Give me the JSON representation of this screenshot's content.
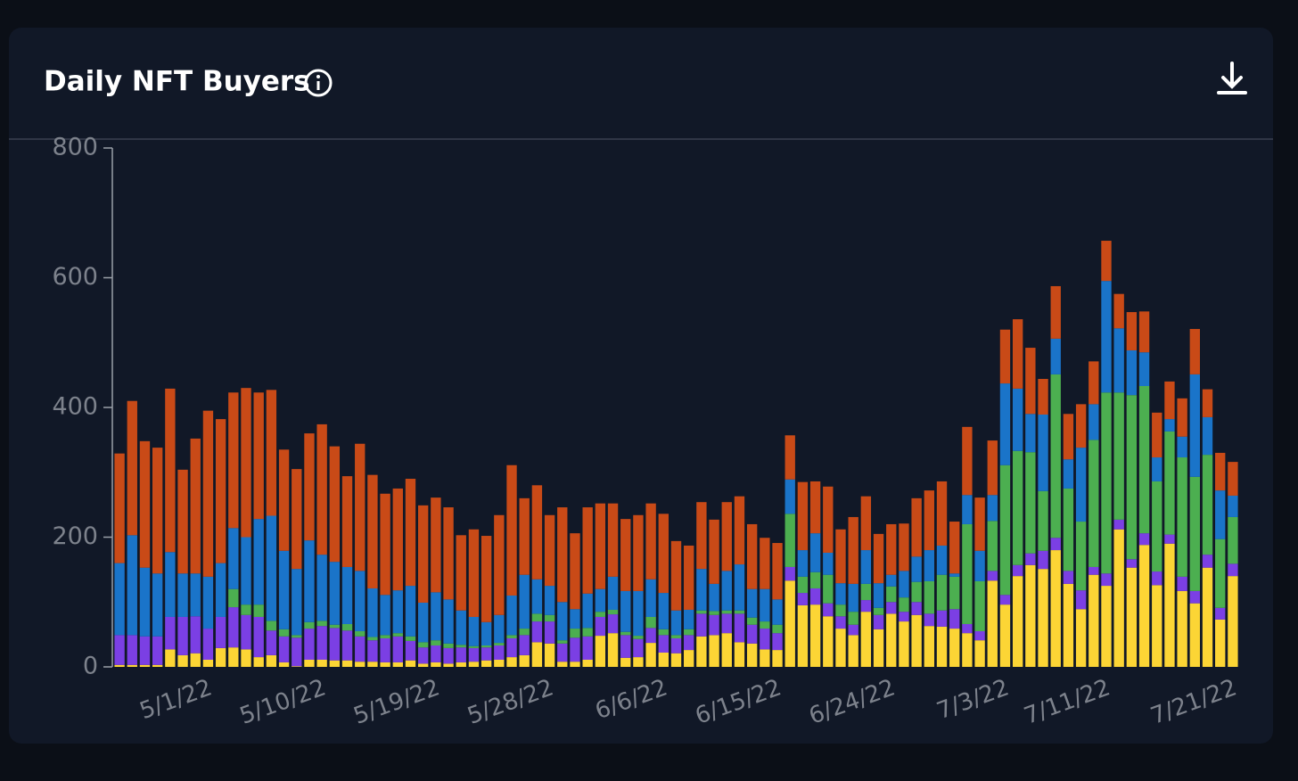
{
  "chart_data": {
    "type": "stacked-bar",
    "title": "Daily NFT Buyers",
    "categories": [
      null,
      null,
      null,
      null,
      null,
      null,
      null,
      "5/1/22",
      null,
      null,
      null,
      null,
      null,
      null,
      null,
      null,
      "5/10/22",
      null,
      null,
      null,
      null,
      null,
      null,
      null,
      null,
      "5/19/22",
      null,
      null,
      null,
      null,
      null,
      null,
      null,
      null,
      "5/28/22",
      null,
      null,
      null,
      null,
      null,
      null,
      null,
      null,
      "6/6/22",
      null,
      null,
      null,
      null,
      null,
      null,
      null,
      null,
      "6/15/22",
      null,
      null,
      null,
      null,
      null,
      null,
      null,
      null,
      "6/24/22",
      null,
      null,
      null,
      null,
      null,
      null,
      null,
      null,
      "7/3/22",
      null,
      null,
      null,
      null,
      null,
      null,
      null,
      "7/11/22",
      null,
      null,
      null,
      null,
      null,
      null,
      null,
      null,
      null,
      "7/21/22"
    ],
    "series": [
      {
        "color": "#fcd535",
        "values": [
          3,
          3,
          3,
          3,
          27,
          18,
          21,
          11,
          29,
          30,
          27,
          15,
          18,
          7,
          1,
          11,
          11,
          10,
          10,
          8,
          8,
          7,
          7,
          10,
          5,
          7,
          5,
          7,
          8,
          10,
          11,
          15,
          18,
          38,
          36,
          8,
          8,
          11,
          48,
          52,
          14,
          15,
          37,
          22,
          21,
          26,
          47,
          49,
          52,
          38,
          36,
          27,
          26,
          133,
          95,
          96,
          78,
          59,
          49,
          85,
          58,
          82,
          70,
          80,
          63,
          62,
          59,
          52,
          41,
          133,
          96,
          140,
          157,
          151,
          180,
          128,
          89,
          142,
          125,
          212,
          153,
          188,
          126,
          190,
          117,
          98,
          153,
          73,
          140
        ]
      },
      {
        "color": "#7b3fe4",
        "values": [
          46,
          46,
          44,
          44,
          50,
          59,
          57,
          48,
          48,
          62,
          53,
          62,
          38,
          40,
          44,
          48,
          52,
          50,
          46,
          39,
          33,
          37,
          40,
          30,
          25,
          26,
          24,
          23,
          21,
          20,
          22,
          29,
          31,
          32,
          34,
          28,
          37,
          36,
          29,
          29,
          35,
          28,
          23,
          27,
          23,
          23,
          35,
          31,
          30,
          44,
          29,
          32,
          26,
          21,
          19,
          25,
          20,
          19,
          16,
          18,
          22,
          18,
          15,
          20,
          19,
          25,
          30,
          14,
          14,
          15,
          15,
          17,
          18,
          28,
          19,
          20,
          29,
          12,
          19,
          15,
          13,
          18,
          21,
          14,
          22,
          19,
          20,
          18,
          19
        ]
      },
      {
        "color": "#4caf50",
        "values": [
          0,
          0,
          0,
          0,
          0,
          0,
          0,
          0,
          0,
          28,
          16,
          19,
          15,
          11,
          4,
          10,
          8,
          5,
          10,
          8,
          5,
          5,
          5,
          7,
          8,
          8,
          7,
          4,
          3,
          3,
          4,
          5,
          10,
          12,
          10,
          5,
          14,
          13,
          8,
          7,
          5,
          5,
          17,
          9,
          5,
          9,
          5,
          6,
          5,
          5,
          11,
          11,
          13,
          82,
          25,
          25,
          44,
          18,
          20,
          25,
          11,
          24,
          22,
          31,
          50,
          55,
          50,
          154,
          77,
          77,
          200,
          176,
          156,
          92,
          252,
          127,
          106,
          196,
          279,
          196,
          253,
          227,
          139,
          159,
          184,
          176,
          154,
          106,
          72
        ]
      },
      {
        "color": "#1a74c9",
        "values": [
          111,
          154,
          106,
          97,
          100,
          67,
          66,
          80,
          83,
          94,
          104,
          132,
          162,
          121,
          102,
          126,
          102,
          97,
          88,
          93,
          75,
          62,
          66,
          78,
          61,
          74,
          68,
          53,
          45,
          36,
          43,
          61,
          83,
          53,
          45,
          59,
          30,
          53,
          35,
          51,
          63,
          69,
          58,
          56,
          38,
          30,
          64,
          42,
          61,
          71,
          44,
          50,
          39,
          53,
          41,
          60,
          34,
          33,
          43,
          52,
          38,
          18,
          41,
          39,
          48,
          45,
          5,
          45,
          47,
          40,
          126,
          96,
          59,
          118,
          55,
          45,
          114,
          55,
          172,
          99,
          69,
          52,
          37,
          19,
          32,
          158,
          58,
          75,
          33
        ]
      },
      {
        "color": "#c94a17",
        "values": [
          169,
          207,
          195,
          194,
          252,
          160,
          208,
          256,
          222,
          209,
          230,
          195,
          194,
          156,
          154,
          165,
          201,
          178,
          140,
          196,
          175,
          156,
          157,
          165,
          150,
          146,
          142,
          116,
          135,
          133,
          154,
          201,
          118,
          145,
          109,
          146,
          117,
          133,
          132,
          113,
          111,
          117,
          117,
          122,
          107,
          99,
          103,
          99,
          106,
          105,
          100,
          79,
          87,
          68,
          105,
          80,
          102,
          83,
          103,
          83,
          76,
          78,
          73,
          90,
          92,
          99,
          80,
          105,
          82,
          84,
          83,
          107,
          102,
          55,
          81,
          70,
          67,
          66,
          62,
          53,
          59,
          63,
          69,
          58,
          59,
          70,
          43,
          58,
          52
        ]
      }
    ],
    "ylim": [
      0,
      800
    ],
    "yticks": [
      0,
      200,
      400,
      600,
      800
    ]
  }
}
